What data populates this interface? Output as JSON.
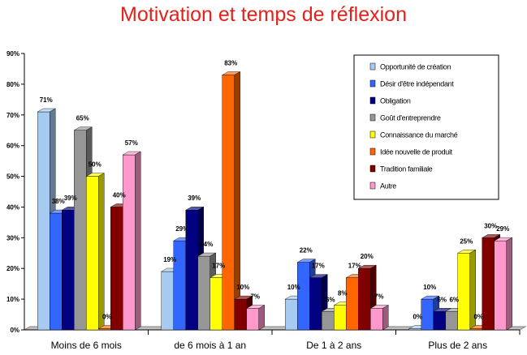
{
  "chart_data": {
    "type": "bar",
    "title": "Motivation et temps de réflexion",
    "xlabel": "",
    "ylabel": "",
    "ylim": [
      0,
      90
    ],
    "yticks": [
      "0%",
      "10%",
      "20%",
      "30%",
      "40%",
      "50%",
      "60%",
      "70%",
      "80%",
      "90%"
    ],
    "grid": false,
    "legend_position": "top-right",
    "categories": [
      "Moins de 6 mois",
      "de 6 mois à 1 an",
      "De 1 à 2 ans",
      "Plus de 2 ans"
    ],
    "series": [
      {
        "name": "Opportunité de création",
        "color": "#a6caf0",
        "values": [
          71,
          19,
          10,
          0
        ],
        "labels": [
          "71%",
          "19%",
          "10%",
          "0%"
        ]
      },
      {
        "name": "Désir d'être indépendant",
        "color": "#3366ff",
        "values": [
          38,
          29,
          22,
          10
        ],
        "labels": [
          "38%",
          "29%",
          "22%",
          "10%"
        ]
      },
      {
        "name": "Obligation",
        "color": "#000080",
        "values": [
          39,
          39,
          17,
          6
        ],
        "labels": [
          "39%",
          "39%",
          "17%",
          "6%"
        ]
      },
      {
        "name": "Goût d'entreprendre",
        "color": "#969696",
        "values": [
          65,
          24,
          6,
          6
        ],
        "labels": [
          "65%",
          "24%",
          "6%",
          "6%"
        ]
      },
      {
        "name": "Connaissance du marché",
        "color": "#ffff00",
        "values": [
          50,
          17,
          8,
          25
        ],
        "labels": [
          "50%",
          "17%",
          "8%",
          "25%"
        ]
      },
      {
        "name": "Idée nouvelle de produit",
        "color": "#ff6600",
        "values": [
          0,
          83,
          17,
          0
        ],
        "labels": [
          "0%",
          "83%",
          "17%",
          "0%"
        ]
      },
      {
        "name": "Tradition familiale",
        "color": "#800000",
        "values": [
          40,
          10,
          20,
          30
        ],
        "labels": [
          "40%",
          "10%",
          "20%",
          "30%"
        ]
      },
      {
        "name": "Autre",
        "color": "#ff99cc",
        "values": [
          57,
          7,
          7,
          29
        ],
        "labels": [
          "57%",
          "7%",
          "7%",
          "29%"
        ]
      }
    ]
  }
}
